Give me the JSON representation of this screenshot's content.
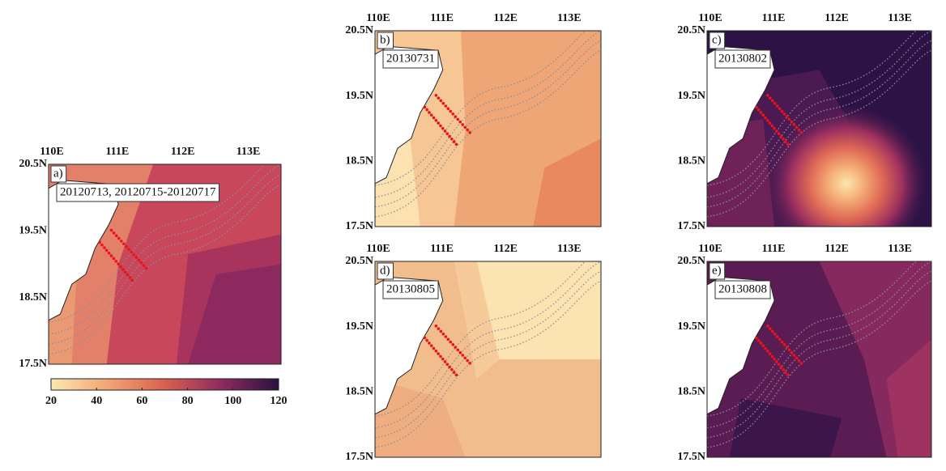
{
  "panels": [
    {
      "label": "a)",
      "date": "20120713, 20120715-20120717",
      "xticks": [
        "110E",
        "111E",
        "112E",
        "113E"
      ],
      "yticks": [
        "20.5N",
        "19.5N",
        "18.5N",
        "17.5N"
      ]
    },
    {
      "label": "b)",
      "date": "20130731",
      "xticks": [
        "110E",
        "111E",
        "112E",
        "113E"
      ],
      "yticks": [
        "20.5N",
        "19.5N",
        "18.5N",
        "17.5N"
      ]
    },
    {
      "label": "c)",
      "date": "20130802",
      "xticks": [
        "110E",
        "111E",
        "112E",
        "113E"
      ],
      "yticks": [
        "20.5N",
        "19.5N",
        "18.5N",
        "17.5N"
      ]
    },
    {
      "label": "d)",
      "date": "20130805",
      "xticks": [
        "110E",
        "111E",
        "112E",
        "113E"
      ],
      "yticks": [
        "20.5N",
        "19.5N",
        "18.5N",
        "17.5N"
      ]
    },
    {
      "label": "e)",
      "date": "20130808",
      "xticks": [
        "110E",
        "111E",
        "112E",
        "113E"
      ],
      "yticks": [
        "20.5N",
        "19.5N",
        "18.5N",
        "17.5N"
      ]
    }
  ],
  "colorbar": {
    "ticks": [
      20,
      40,
      60,
      80,
      100,
      120
    ]
  }
}
